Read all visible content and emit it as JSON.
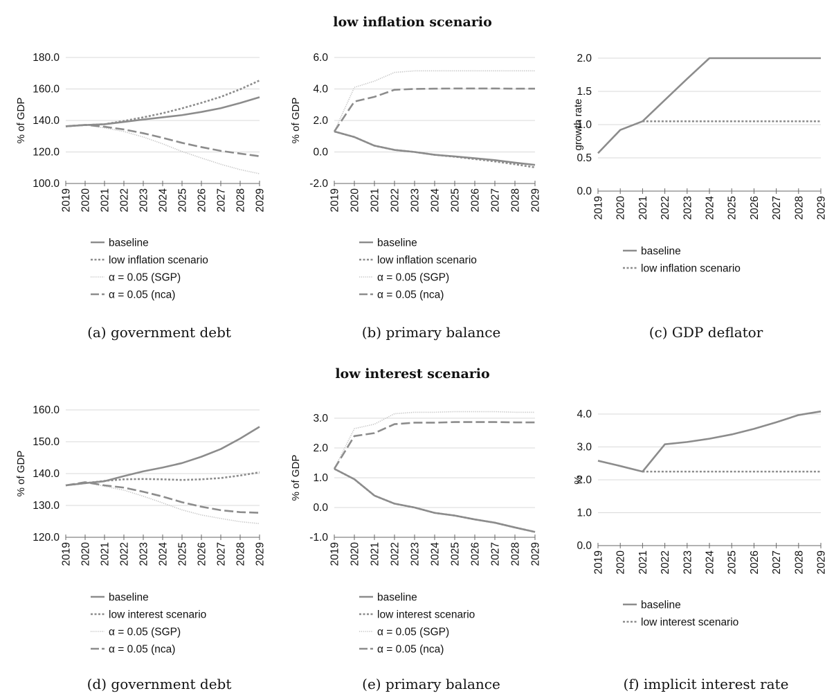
{
  "rows": [
    {
      "title": "low inflation scenario"
    },
    {
      "title": "low interest scenario"
    }
  ],
  "series_styles": {
    "baseline": {
      "color": "#8c8c8c",
      "dash": "solid"
    },
    "scenario": {
      "color": "#8c8c8c",
      "dash": "dotted"
    },
    "sgp": {
      "color": "#c2c2c2",
      "dash": "fine-dotted"
    },
    "nca": {
      "color": "#8c8c8c",
      "dash": "dashed"
    }
  },
  "chart_data": [
    {
      "id": "a",
      "type": "line",
      "caption": "(a) government debt",
      "ylabel": "% of GDP",
      "ylim": [
        100,
        180
      ],
      "yticks": [
        100,
        120,
        140,
        160,
        180
      ],
      "decimals": 1,
      "x": [
        "2019",
        "2020",
        "2021",
        "2022",
        "2023",
        "2024",
        "2025",
        "2026",
        "2027",
        "2028",
        "2029"
      ],
      "legend": [
        "baseline",
        "low inflation scenario",
        "α = 0.05 (SGP)",
        "α = 0.05 (nca)"
      ],
      "series": [
        {
          "name": "baseline",
          "style": "baseline",
          "values": [
            136.3,
            137.1,
            137.6,
            139.1,
            140.6,
            142.0,
            143.4,
            145.4,
            147.8,
            151.1,
            154.8
          ]
        },
        {
          "name": "low inflation scenario",
          "style": "scenario",
          "values": [
            136.3,
            137.1,
            137.6,
            139.7,
            142.0,
            144.6,
            147.7,
            151.2,
            155.0,
            159.8,
            165.4
          ]
        },
        {
          "name": "α = 0.05 (SGP)",
          "style": "sgp",
          "values": [
            136.3,
            137.2,
            135.3,
            133.0,
            129.5,
            125.2,
            120.3,
            116.2,
            112.2,
            108.8,
            106.2
          ]
        },
        {
          "name": "α = 0.05 (nca)",
          "style": "nca",
          "values": [
            136.3,
            137.2,
            136.0,
            134.3,
            131.9,
            129.0,
            125.8,
            123.1,
            120.7,
            119.0,
            117.3
          ]
        }
      ]
    },
    {
      "id": "b",
      "type": "line",
      "caption": "(b) primary balance",
      "ylabel": "% of GDP",
      "ylim": [
        -2,
        6
      ],
      "yticks": [
        -2,
        0,
        2,
        4,
        6
      ],
      "decimals": 1,
      "x": [
        "2019",
        "2020",
        "2021",
        "2022",
        "2023",
        "2024",
        "2025",
        "2026",
        "2027",
        "2028",
        "2029"
      ],
      "legend": [
        "baseline",
        "low inflation scenario",
        "α = 0.05 (SGP)",
        "α = 0.05 (nca)"
      ],
      "series": [
        {
          "name": "baseline",
          "style": "baseline",
          "values": [
            1.3,
            0.95,
            0.4,
            0.13,
            0.0,
            -0.18,
            -0.28,
            -0.4,
            -0.52,
            -0.68,
            -0.82
          ]
        },
        {
          "name": "low inflation scenario",
          "style": "scenario",
          "values": [
            1.3,
            0.95,
            0.4,
            0.13,
            0.0,
            -0.18,
            -0.3,
            -0.45,
            -0.6,
            -0.78,
            -0.98
          ]
        },
        {
          "name": "α = 0.05 (SGP)",
          "style": "sgp",
          "values": [
            1.3,
            4.1,
            4.5,
            5.05,
            5.15,
            5.15,
            5.15,
            5.15,
            5.15,
            5.15,
            5.15
          ]
        },
        {
          "name": "α = 0.05 (nca)",
          "style": "nca",
          "values": [
            1.3,
            3.2,
            3.5,
            3.95,
            4.0,
            4.02,
            4.03,
            4.03,
            4.03,
            4.02,
            4.02
          ]
        }
      ]
    },
    {
      "id": "c",
      "type": "line",
      "caption": "(c) GDP deflator",
      "ylabel": "growth rate",
      "ylim": [
        0,
        2
      ],
      "yticks": [
        0,
        0.5,
        1,
        1.5,
        2
      ],
      "decimals": 1,
      "x": [
        "2019",
        "2020",
        "2021",
        "2022",
        "2023",
        "2024",
        "2025",
        "2026",
        "2027",
        "2028",
        "2029"
      ],
      "legend": [
        "baseline",
        "low inflation scenario"
      ],
      "series": [
        {
          "name": "baseline",
          "style": "baseline",
          "values": [
            0.57,
            0.92,
            1.05,
            1.37,
            1.69,
            2.0,
            2.0,
            2.0,
            2.0,
            2.0,
            2.0
          ]
        },
        {
          "name": "low inflation scenario",
          "style": "scenario",
          "values": [
            null,
            null,
            1.05,
            1.05,
            1.05,
            1.05,
            1.05,
            1.05,
            1.05,
            1.05,
            1.05
          ]
        }
      ]
    },
    {
      "id": "d",
      "type": "line",
      "caption": "(d) government debt",
      "ylabel": "% of GDP",
      "ylim": [
        120,
        160
      ],
      "yticks": [
        120,
        130,
        140,
        150,
        160
      ],
      "decimals": 1,
      "x": [
        "2019",
        "2020",
        "2021",
        "2022",
        "2023",
        "2024",
        "2025",
        "2026",
        "2027",
        "2028",
        "2029"
      ],
      "legend": [
        "baseline",
        "low interest scenario",
        "α = 0.05 (SGP)",
        "α = 0.05 (nca)"
      ],
      "series": [
        {
          "name": "baseline",
          "style": "baseline",
          "values": [
            136.3,
            137.0,
            137.6,
            139.2,
            140.7,
            141.9,
            143.3,
            145.3,
            147.7,
            151.0,
            154.7
          ]
        },
        {
          "name": "low interest scenario",
          "style": "scenario",
          "values": [
            136.3,
            137.0,
            137.7,
            138.2,
            138.3,
            138.2,
            138.0,
            138.2,
            138.6,
            139.4,
            140.4
          ]
        },
        {
          "name": "α = 0.05 (SGP)",
          "style": "sgp",
          "values": [
            136.3,
            137.3,
            136.0,
            134.8,
            132.9,
            130.8,
            128.6,
            127.0,
            125.9,
            124.9,
            124.3
          ]
        },
        {
          "name": "α = 0.05 (nca)",
          "style": "nca",
          "values": [
            136.3,
            137.3,
            136.3,
            135.6,
            134.3,
            132.8,
            131.0,
            129.6,
            128.5,
            127.9,
            127.7
          ]
        }
      ]
    },
    {
      "id": "e",
      "type": "line",
      "caption": "(e) primary balance",
      "ylabel": "% of GDP",
      "ylim": [
        -1,
        3
      ],
      "yticks": [
        -1,
        0,
        1,
        2,
        3
      ],
      "decimals": 1,
      "x": [
        "2019",
        "2020",
        "2021",
        "2022",
        "2023",
        "2024",
        "2025",
        "2026",
        "2027",
        "2028",
        "2029"
      ],
      "legend": [
        "baseline",
        "low interest scenario",
        "α = 0.05 (SGP)",
        "α = 0.05 (nca)"
      ],
      "series": [
        {
          "name": "baseline",
          "style": "baseline",
          "values": [
            1.3,
            0.95,
            0.4,
            0.13,
            0.0,
            -0.18,
            -0.27,
            -0.4,
            -0.51,
            -0.67,
            -0.82
          ]
        },
        {
          "name": "low interest scenario",
          "style": "scenario",
          "values": [
            1.3,
            0.95,
            0.4,
            0.13,
            0.0,
            -0.18,
            -0.27,
            -0.4,
            -0.51,
            -0.67,
            -0.82
          ]
        },
        {
          "name": "α = 0.05 (SGP)",
          "style": "sgp",
          "values": [
            1.3,
            2.65,
            2.8,
            3.15,
            3.2,
            3.2,
            3.22,
            3.22,
            3.22,
            3.2,
            3.2
          ]
        },
        {
          "name": "α = 0.05 (nca)",
          "style": "nca",
          "values": [
            1.3,
            2.4,
            2.5,
            2.8,
            2.85,
            2.85,
            2.87,
            2.87,
            2.87,
            2.86,
            2.86
          ]
        }
      ]
    },
    {
      "id": "f",
      "type": "line",
      "caption": "(f) implicit interest rate",
      "ylabel": "%",
      "ylim": [
        0,
        4
      ],
      "yticks": [
        0,
        1,
        2,
        3,
        4
      ],
      "decimals": 1,
      "x": [
        "2019",
        "2020",
        "2021",
        "2022",
        "2023",
        "2024",
        "2025",
        "2026",
        "2027",
        "2028",
        "2029"
      ],
      "legend": [
        "baseline",
        "low interest scenario"
      ],
      "series": [
        {
          "name": "baseline",
          "style": "baseline",
          "values": [
            2.58,
            2.42,
            2.25,
            3.08,
            3.15,
            3.25,
            3.38,
            3.55,
            3.75,
            3.97,
            4.08
          ]
        },
        {
          "name": "low interest scenario",
          "style": "scenario",
          "values": [
            null,
            null,
            2.25,
            2.25,
            2.25,
            2.25,
            2.25,
            2.25,
            2.25,
            2.25,
            2.25
          ]
        }
      ]
    }
  ]
}
